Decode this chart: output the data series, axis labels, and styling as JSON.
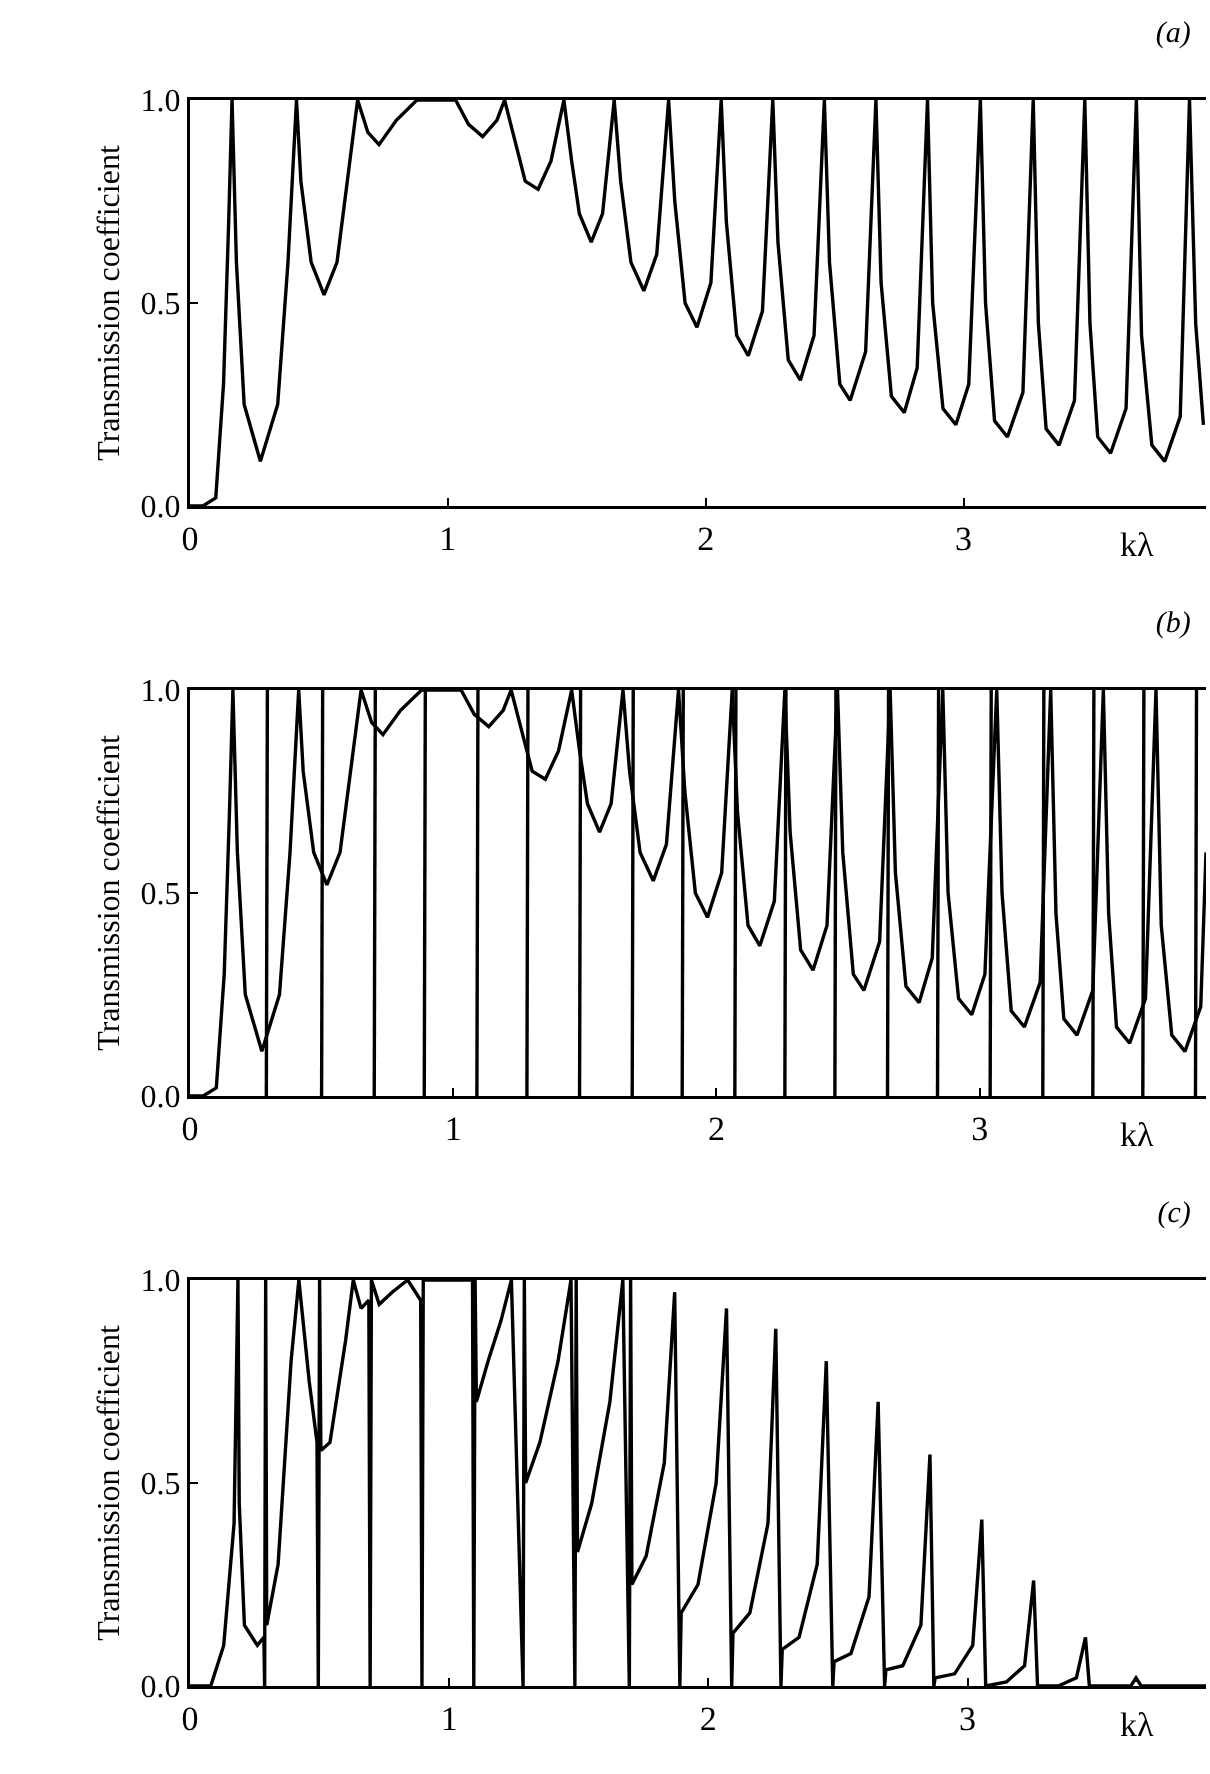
{
  "chart_data": [
    {
      "type": "line",
      "title": "(a)",
      "xlabel": "kλ",
      "ylabel": "Transmission coefficient",
      "xlim": [
        0,
        3.94
      ],
      "ylim": [
        0,
        1
      ],
      "xticks": [
        0,
        1,
        2,
        3
      ],
      "yticks": [
        {
          "value": 0,
          "label": "0.0"
        },
        {
          "value": 0.5,
          "label": "0.5"
        },
        {
          "value": 1,
          "label": "1.0"
        }
      ],
      "grid": false,
      "series": [
        {
          "color": "#000000",
          "x": [
            0,
            0.05,
            0.1,
            0.13,
            0.15,
            0.163,
            0.18,
            0.21,
            0.273,
            0.34,
            0.38,
            0.413,
            0.43,
            0.47,
            0.52,
            0.57,
            0.62,
            0.65,
            0.69,
            0.733,
            0.8,
            0.88,
            1.03,
            1.08,
            1.135,
            1.19,
            1.22,
            1.26,
            1.3,
            1.35,
            1.4,
            1.45,
            1.48,
            1.51,
            1.556,
            1.6,
            1.645,
            1.67,
            1.71,
            1.76,
            1.81,
            1.856,
            1.88,
            1.92,
            1.966,
            2.02,
            2.06,
            2.08,
            2.12,
            2.165,
            2.22,
            2.26,
            2.28,
            2.32,
            2.367,
            2.42,
            2.46,
            2.48,
            2.52,
            2.56,
            2.62,
            2.66,
            2.68,
            2.72,
            2.77,
            2.82,
            2.86,
            2.88,
            2.92,
            2.97,
            3.02,
            3.065,
            3.085,
            3.12,
            3.17,
            3.23,
            3.27,
            3.29,
            3.32,
            3.37,
            3.43,
            3.47,
            3.49,
            3.52,
            3.57,
            3.63,
            3.67,
            3.69,
            3.73,
            3.78,
            3.84,
            3.876,
            3.9,
            3.93
          ],
          "values": [
            0,
            0,
            0.02,
            0.3,
            0.7,
            1,
            0.6,
            0.25,
            0.11,
            0.25,
            0.6,
            1,
            0.8,
            0.6,
            0.52,
            0.6,
            0.85,
            1,
            0.92,
            0.89,
            0.95,
            1,
            1,
            0.94,
            0.91,
            0.95,
            1,
            0.9,
            0.8,
            0.78,
            0.85,
            1,
            0.85,
            0.72,
            0.65,
            0.72,
            1,
            0.8,
            0.6,
            0.53,
            0.62,
            1,
            0.75,
            0.5,
            0.44,
            0.55,
            1,
            0.7,
            0.42,
            0.37,
            0.48,
            1,
            0.65,
            0.36,
            0.31,
            0.42,
            1,
            0.6,
            0.3,
            0.26,
            0.38,
            1,
            0.55,
            0.27,
            0.23,
            0.34,
            1,
            0.5,
            0.24,
            0.2,
            0.3,
            1,
            0.5,
            0.21,
            0.17,
            0.28,
            1,
            0.45,
            0.19,
            0.15,
            0.26,
            1,
            0.45,
            0.17,
            0.13,
            0.24,
            1,
            0.42,
            0.15,
            0.11,
            0.22,
            1,
            0.45,
            0.2
          ]
        }
      ]
    },
    {
      "type": "line",
      "title": "(b)",
      "xlabel": "kλ",
      "ylabel": "Transmission coefficient",
      "xlim": [
        0,
        3.86
      ],
      "ylim": [
        0,
        1
      ],
      "xticks": [
        0,
        1,
        2,
        3
      ],
      "yticks": [
        {
          "value": 0,
          "label": "0.0"
        },
        {
          "value": 0.5,
          "label": "0.5"
        },
        {
          "value": 1,
          "label": "1.0"
        }
      ],
      "grid": false,
      "series": [
        {
          "color": "#000000",
          "x": [
            0,
            0.05,
            0.1,
            0.13,
            0.15,
            0.163,
            0.18,
            0.21,
            0.273,
            0.34,
            0.38,
            0.413,
            0.43,
            0.47,
            0.52,
            0.57,
            0.62,
            0.65,
            0.69,
            0.733,
            0.8,
            0.88,
            1.03,
            1.08,
            1.135,
            1.19,
            1.22,
            1.26,
            1.3,
            1.35,
            1.4,
            1.45,
            1.48,
            1.51,
            1.556,
            1.6,
            1.645,
            1.67,
            1.71,
            1.76,
            1.81,
            1.856,
            1.88,
            1.92,
            1.966,
            2.02,
            2.06,
            2.08,
            2.12,
            2.165,
            2.22,
            2.26,
            2.28,
            2.32,
            2.367,
            2.42,
            2.46,
            2.48,
            2.52,
            2.56,
            2.62,
            2.66,
            2.68,
            2.72,
            2.77,
            2.82,
            2.86,
            2.88,
            2.92,
            2.97,
            3.02,
            3.065,
            3.085,
            3.12,
            3.17,
            3.23,
            3.27,
            3.29,
            3.32,
            3.37,
            3.43,
            3.47,
            3.49,
            3.52,
            3.57,
            3.63,
            3.67,
            3.69,
            3.73,
            3.78,
            3.84,
            3.86
          ],
          "values": [
            0,
            0,
            0.02,
            0.3,
            0.7,
            1,
            0.6,
            0.25,
            0.11,
            0.25,
            0.6,
            1,
            0.8,
            0.6,
            0.52,
            0.6,
            0.85,
            1,
            0.92,
            0.89,
            0.95,
            1,
            1,
            0.94,
            0.91,
            0.95,
            1,
            0.9,
            0.8,
            0.78,
            0.85,
            1,
            0.85,
            0.72,
            0.65,
            0.72,
            1,
            0.8,
            0.6,
            0.53,
            0.62,
            1,
            0.75,
            0.5,
            0.44,
            0.55,
            1,
            0.7,
            0.42,
            0.37,
            0.48,
            1,
            0.65,
            0.36,
            0.31,
            0.42,
            1,
            0.6,
            0.3,
            0.26,
            0.38,
            1,
            0.55,
            0.27,
            0.23,
            0.34,
            1,
            0.5,
            0.24,
            0.2,
            0.3,
            1,
            0.5,
            0.21,
            0.17,
            0.28,
            1,
            0.45,
            0.19,
            0.15,
            0.26,
            1,
            0.45,
            0.17,
            0.13,
            0.24,
            1,
            0.42,
            0.15,
            0.11,
            0.22,
            0.6
          ]
        },
        {
          "color": "#000000",
          "x": [
            0.29,
            0.294,
            0.296,
            0.5,
            0.504,
            0.506,
            0.7,
            0.704,
            0.706,
            0.89,
            0.894,
            0.896,
            1.09,
            1.094,
            1.096,
            1.28,
            1.284,
            1.286,
            1.48,
            1.484,
            1.486,
            1.68,
            1.684,
            1.686,
            1.87,
            1.874,
            1.876,
            2.07,
            2.074,
            2.076,
            2.26,
            2.264,
            2.266,
            2.45,
            2.454,
            2.456,
            2.65,
            2.654,
            2.656,
            2.84,
            2.844,
            2.846,
            3.04,
            3.044,
            3.046,
            3.24,
            3.244,
            3.246,
            3.43,
            3.434,
            3.436,
            3.62,
            3.624,
            3.626,
            3.82,
            3.824
          ],
          "values": [
            0,
            1,
            null,
            0,
            1,
            null,
            0,
            1,
            null,
            0,
            1,
            null,
            0,
            1,
            null,
            0,
            1,
            null,
            0,
            1,
            null,
            0,
            1,
            null,
            0,
            1,
            null,
            0,
            1,
            null,
            0,
            1,
            null,
            0,
            1,
            null,
            0,
            1,
            null,
            0,
            1,
            null,
            0,
            1,
            null,
            0,
            1,
            null,
            0,
            1,
            null,
            0,
            1,
            null,
            0,
            1
          ]
        }
      ]
    },
    {
      "type": "line",
      "title": "(c)",
      "xlabel": "kλ",
      "ylabel": "Transmission coefficient",
      "xlim": [
        0,
        3.92
      ],
      "ylim": [
        0,
        1
      ],
      "xticks": [
        0,
        1,
        2,
        3
      ],
      "yticks": [
        {
          "value": 0,
          "label": "0.0"
        },
        {
          "value": 0.5,
          "label": "0.5"
        },
        {
          "value": 1,
          "label": "1.0"
        }
      ],
      "grid": false,
      "series": [
        {
          "color": "#000000",
          "x": [
            0,
            0.08,
            0.13,
            0.17,
            0.185,
            0.19,
            0.21,
            0.26,
            0.285,
            0.288,
            0.292,
            0.296,
            0.34,
            0.39,
            0.42,
            0.46,
            0.49,
            0.495,
            0.5,
            0.505,
            0.54,
            0.6,
            0.63,
            0.66,
            0.69,
            0.695,
            0.7,
            0.73,
            0.78,
            0.84,
            0.89,
            0.895,
            0.9,
            0.95,
            1.09,
            1.095,
            1.1,
            1.105,
            1.15,
            1.2,
            1.24,
            1.285,
            1.29,
            1.295,
            1.35,
            1.42,
            1.47,
            1.485,
            1.49,
            1.495,
            1.55,
            1.62,
            1.67,
            1.695,
            1.7,
            1.705,
            1.76,
            1.83,
            1.87,
            1.89,
            1.895,
            1.96,
            2.03,
            2.07,
            2.09,
            2.095,
            2.16,
            2.23,
            2.26,
            2.28,
            2.285,
            2.35,
            2.42,
            2.455,
            2.48,
            2.485,
            2.55,
            2.62,
            2.655,
            2.68,
            2.685,
            2.75,
            2.82,
            2.855,
            2.87,
            2.875,
            2.95,
            3.02,
            3.055,
            3.07,
            3.15,
            3.22,
            3.255,
            3.27,
            3.35,
            3.42,
            3.455,
            3.47,
            3.63,
            3.65,
            3.67,
            3.92
          ],
          "values": [
            0,
            0,
            0.1,
            0.4,
            1,
            0.45,
            0.15,
            0.1,
            0.12,
            0,
            1,
            0.15,
            0.3,
            0.8,
            1,
            0.75,
            0.6,
            0,
            1,
            0.58,
            0.6,
            0.85,
            1,
            0.93,
            0.95,
            0,
            1,
            0.94,
            0.97,
            1,
            0.95,
            0,
            1,
            1,
            1,
            0,
            1,
            0.7,
            0.8,
            0.9,
            1,
            0,
            1,
            0.5,
            0.6,
            0.8,
            1,
            0,
            1,
            0.33,
            0.45,
            0.7,
            1,
            0,
            1,
            0.25,
            0.32,
            0.55,
            0.97,
            0,
            0.18,
            0.25,
            0.5,
            0.93,
            0,
            0.13,
            0.18,
            0.4,
            0.88,
            0,
            0.09,
            0.12,
            0.3,
            0.8,
            0,
            0.06,
            0.08,
            0.22,
            0.7,
            0,
            0.04,
            0.05,
            0.15,
            0.57,
            0,
            0.02,
            0.03,
            0.1,
            0.41,
            0,
            0.01,
            0.05,
            0.26,
            0,
            0,
            0.02,
            0.12,
            0,
            0,
            0.02,
            0,
            0
          ]
        }
      ]
    }
  ]
}
